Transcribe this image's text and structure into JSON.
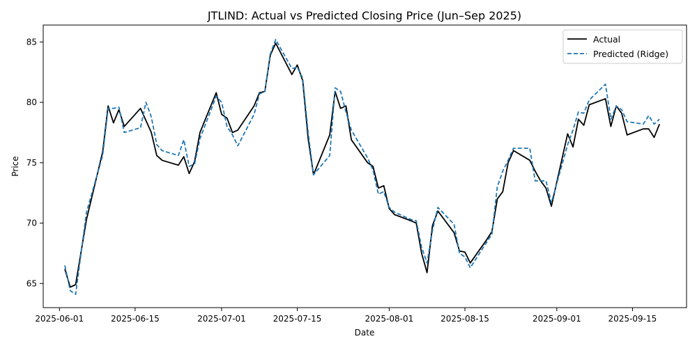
{
  "chart_data": {
    "type": "line",
    "title": "JTLIND: Actual vs Predicted Closing Price (Jun–Sep 2025)",
    "xlabel": "Date",
    "ylabel": "Price",
    "x_tick_labels": [
      "2025-06-01",
      "2025-06-15",
      "2025-07-01",
      "2025-07-15",
      "2025-08-01",
      "2025-08-15",
      "2025-09-01",
      "2025-09-15"
    ],
    "y_tick_labels": [
      "65",
      "70",
      "75",
      "80",
      "85"
    ],
    "y_ticks": [
      65,
      70,
      75,
      80,
      85
    ],
    "xlim": [
      "2025-05-29",
      "2025-09-25"
    ],
    "ylim": [
      63.0,
      86.4
    ],
    "legend_position": "upper right",
    "grid": false,
    "series": [
      {
        "name": "Actual",
        "color": "#000000",
        "style": "solid",
        "points": [
          [
            "2025-06-02",
            66.2
          ],
          [
            "2025-06-03",
            64.7
          ],
          [
            "2025-06-04",
            64.9
          ],
          [
            "2025-06-06",
            70.3
          ],
          [
            "2025-06-09",
            75.9
          ],
          [
            "2025-06-10",
            79.7
          ],
          [
            "2025-06-11",
            78.3
          ],
          [
            "2025-06-12",
            79.4
          ],
          [
            "2025-06-13",
            78.0
          ],
          [
            "2025-06-16",
            79.5
          ],
          [
            "2025-06-18",
            77.5
          ],
          [
            "2025-06-19",
            75.6
          ],
          [
            "2025-06-20",
            75.2
          ],
          [
            "2025-06-23",
            74.8
          ],
          [
            "2025-06-24",
            75.5
          ],
          [
            "2025-06-25",
            74.1
          ],
          [
            "2025-06-26",
            75.1
          ],
          [
            "2025-06-27",
            77.5
          ],
          [
            "2025-06-30",
            80.8
          ],
          [
            "2025-07-01",
            79.0
          ],
          [
            "2025-07-02",
            78.7
          ],
          [
            "2025-07-03",
            77.5
          ],
          [
            "2025-07-04",
            77.7
          ],
          [
            "2025-07-07",
            79.7
          ],
          [
            "2025-07-08",
            80.8
          ],
          [
            "2025-07-09",
            80.9
          ],
          [
            "2025-07-10",
            83.9
          ],
          [
            "2025-07-11",
            84.9
          ],
          [
            "2025-07-14",
            82.3
          ],
          [
            "2025-07-15",
            83.1
          ],
          [
            "2025-07-16",
            81.8
          ],
          [
            "2025-07-17",
            77.0
          ],
          [
            "2025-07-18",
            74.0
          ],
          [
            "2025-07-21",
            77.3
          ],
          [
            "2025-07-22",
            80.9
          ],
          [
            "2025-07-23",
            79.5
          ],
          [
            "2025-07-24",
            79.7
          ],
          [
            "2025-07-25",
            76.9
          ],
          [
            "2025-07-28",
            75.0
          ],
          [
            "2025-07-29",
            74.7
          ],
          [
            "2025-07-30",
            72.9
          ],
          [
            "2025-07-31",
            73.1
          ],
          [
            "2025-08-01",
            71.2
          ],
          [
            "2025-08-02",
            70.7
          ],
          [
            "2025-08-05",
            70.2
          ],
          [
            "2025-08-06",
            70.0
          ],
          [
            "2025-08-07",
            67.5
          ],
          [
            "2025-08-08",
            65.9
          ],
          [
            "2025-08-09",
            69.8
          ],
          [
            "2025-08-10",
            71.0
          ],
          [
            "2025-08-13",
            69.2
          ],
          [
            "2025-08-14",
            67.7
          ],
          [
            "2025-08-15",
            67.6
          ],
          [
            "2025-08-16",
            66.7
          ],
          [
            "2025-08-19",
            68.6
          ],
          [
            "2025-08-20",
            69.3
          ],
          [
            "2025-08-21",
            72.0
          ],
          [
            "2025-08-22",
            72.6
          ],
          [
            "2025-08-23",
            75.0
          ],
          [
            "2025-08-24",
            76.0
          ],
          [
            "2025-08-27",
            75.2
          ],
          [
            "2025-08-28",
            74.3
          ],
          [
            "2025-08-29",
            73.5
          ],
          [
            "2025-08-30",
            72.9
          ],
          [
            "2025-08-31",
            71.4
          ],
          [
            "2025-09-03",
            77.4
          ],
          [
            "2025-09-04",
            76.3
          ],
          [
            "2025-09-05",
            78.6
          ],
          [
            "2025-09-06",
            78.1
          ],
          [
            "2025-09-07",
            79.8
          ],
          [
            "2025-09-10",
            80.3
          ],
          [
            "2025-09-11",
            78.0
          ],
          [
            "2025-09-12",
            79.7
          ],
          [
            "2025-09-13",
            79.1
          ],
          [
            "2025-09-14",
            77.3
          ],
          [
            "2025-09-17",
            77.8
          ],
          [
            "2025-09-18",
            77.8
          ],
          [
            "2025-09-19",
            77.1
          ],
          [
            "2025-09-20",
            78.2
          ]
        ]
      },
      {
        "name": "Predicted (Ridge)",
        "color": "#1f77b4",
        "style": "dashed",
        "points": [
          [
            "2025-06-02",
            66.5
          ],
          [
            "2025-06-03",
            64.4
          ],
          [
            "2025-06-04",
            64.1
          ],
          [
            "2025-06-06",
            70.9
          ],
          [
            "2025-06-09",
            75.6
          ],
          [
            "2025-06-10",
            79.5
          ],
          [
            "2025-06-11",
            79.5
          ],
          [
            "2025-06-12",
            79.6
          ],
          [
            "2025-06-13",
            77.5
          ],
          [
            "2025-06-16",
            77.9
          ],
          [
            "2025-06-17",
            80.0
          ],
          [
            "2025-06-18",
            78.8
          ],
          [
            "2025-06-19",
            76.5
          ],
          [
            "2025-06-20",
            76.0
          ],
          [
            "2025-06-23",
            75.6
          ],
          [
            "2025-06-24",
            76.9
          ],
          [
            "2025-06-25",
            74.7
          ],
          [
            "2025-06-26",
            74.9
          ],
          [
            "2025-06-27",
            77.0
          ],
          [
            "2025-06-30",
            80.5
          ],
          [
            "2025-07-01",
            80.0
          ],
          [
            "2025-07-02",
            78.0
          ],
          [
            "2025-07-03",
            77.3
          ],
          [
            "2025-07-04",
            76.4
          ],
          [
            "2025-07-07",
            79.0
          ],
          [
            "2025-07-08",
            80.7
          ],
          [
            "2025-07-09",
            80.9
          ],
          [
            "2025-07-10",
            84.0
          ],
          [
            "2025-07-11",
            85.2
          ],
          [
            "2025-07-14",
            82.8
          ],
          [
            "2025-07-15",
            82.9
          ],
          [
            "2025-07-16",
            82.0
          ],
          [
            "2025-07-17",
            77.5
          ],
          [
            "2025-07-18",
            74.0
          ],
          [
            "2025-07-21",
            75.6
          ],
          [
            "2025-07-22",
            81.2
          ],
          [
            "2025-07-23",
            80.9
          ],
          [
            "2025-07-24",
            79.2
          ],
          [
            "2025-07-25",
            77.7
          ],
          [
            "2025-07-28",
            75.4
          ],
          [
            "2025-07-29",
            74.4
          ],
          [
            "2025-07-30",
            72.4
          ],
          [
            "2025-07-31",
            72.6
          ],
          [
            "2025-08-01",
            71.3
          ],
          [
            "2025-08-02",
            70.9
          ],
          [
            "2025-08-05",
            70.3
          ],
          [
            "2025-08-06",
            70.2
          ],
          [
            "2025-08-07",
            68.0
          ],
          [
            "2025-08-08",
            66.7
          ],
          [
            "2025-08-09",
            69.4
          ],
          [
            "2025-08-10",
            71.3
          ],
          [
            "2025-08-13",
            69.9
          ],
          [
            "2025-08-14",
            67.5
          ],
          [
            "2025-08-15",
            67.2
          ],
          [
            "2025-08-16",
            66.3
          ],
          [
            "2025-08-19",
            68.4
          ],
          [
            "2025-08-20",
            69.1
          ],
          [
            "2025-08-21",
            73.0
          ],
          [
            "2025-08-22",
            74.3
          ],
          [
            "2025-08-23",
            75.2
          ],
          [
            "2025-08-24",
            76.2
          ],
          [
            "2025-08-27",
            76.2
          ],
          [
            "2025-08-28",
            73.5
          ],
          [
            "2025-08-29",
            73.5
          ],
          [
            "2025-08-30",
            73.5
          ],
          [
            "2025-08-31",
            71.7
          ],
          [
            "2025-09-03",
            76.5
          ],
          [
            "2025-09-04",
            77.7
          ],
          [
            "2025-09-05",
            79.2
          ],
          [
            "2025-09-06",
            79.1
          ],
          [
            "2025-09-07",
            80.2
          ],
          [
            "2025-09-10",
            81.5
          ],
          [
            "2025-09-11",
            78.6
          ],
          [
            "2025-09-12",
            79.7
          ],
          [
            "2025-09-13",
            79.4
          ],
          [
            "2025-09-14",
            78.4
          ],
          [
            "2025-09-17",
            78.2
          ],
          [
            "2025-09-18",
            78.9
          ],
          [
            "2025-09-19",
            78.2
          ],
          [
            "2025-09-20",
            78.6
          ]
        ]
      }
    ]
  }
}
